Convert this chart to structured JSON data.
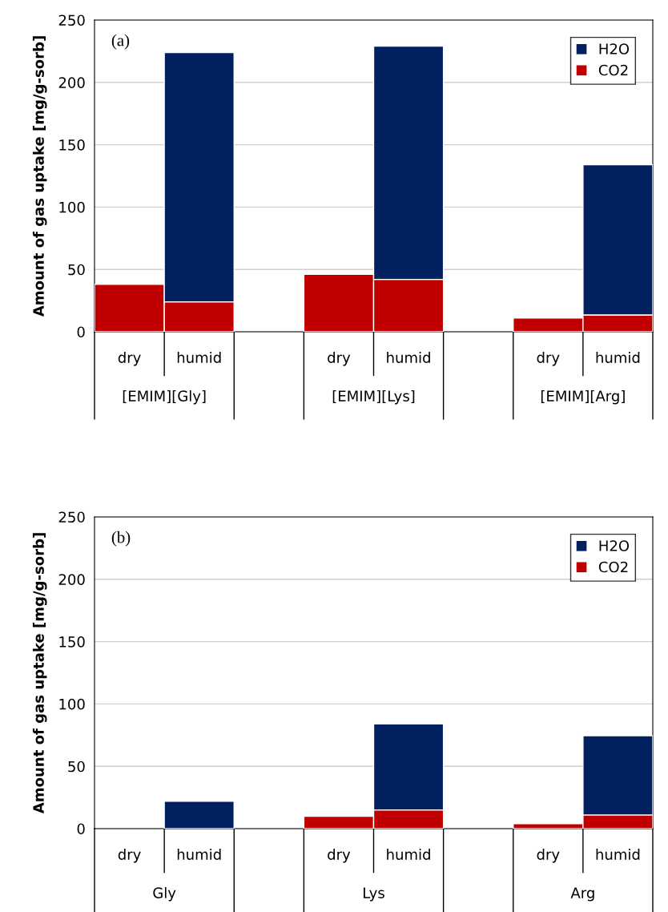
{
  "chart_data": [
    {
      "type": "bar",
      "title": "(a)",
      "ylabel": "Amount of gas uptake [mg/g-sorb]",
      "stacked": true,
      "categories": [
        "dry",
        "humid",
        null,
        "dry",
        "humid",
        null,
        "dry",
        "humid"
      ],
      "series": [
        {
          "name": "CO2",
          "color": "#c00000",
          "values": [
            38,
            24,
            null,
            46,
            42,
            null,
            11,
            13.5
          ]
        },
        {
          "name": "H2O",
          "color": "#002060",
          "values": [
            null,
            200,
            null,
            null,
            187,
            null,
            null,
            120.5
          ]
        }
      ],
      "annotations": [
        "[EMIM][Gly]",
        "[EMIM][Lys]",
        "[EMIM][Arg]"
      ],
      "ylim": [
        0,
        250
      ],
      "yticks": [
        0,
        50,
        100,
        150,
        200,
        250
      ],
      "grid": "y",
      "legend": "top right"
    },
    {
      "type": "bar",
      "title": "(b)",
      "ylabel": "Amount of gas uptake [mg/g-sorb]",
      "stacked": true,
      "categories": [
        "dry",
        "humid",
        null,
        "dry",
        "humid",
        null,
        "dry",
        "humid"
      ],
      "series": [
        {
          "name": "CO2",
          "color": "#c00000",
          "values": [
            null,
            null,
            null,
            10,
            15,
            null,
            4,
            11
          ]
        },
        {
          "name": "H2O",
          "color": "#002060",
          "values": [
            null,
            22,
            null,
            null,
            69,
            null,
            null,
            63.5
          ]
        }
      ],
      "annotations": [
        "Gly",
        "Lys",
        "Arg"
      ],
      "ylim": [
        0,
        250
      ],
      "yticks": [
        0,
        50,
        100,
        150,
        200,
        250
      ],
      "grid": "y",
      "legend": "top right"
    }
  ]
}
